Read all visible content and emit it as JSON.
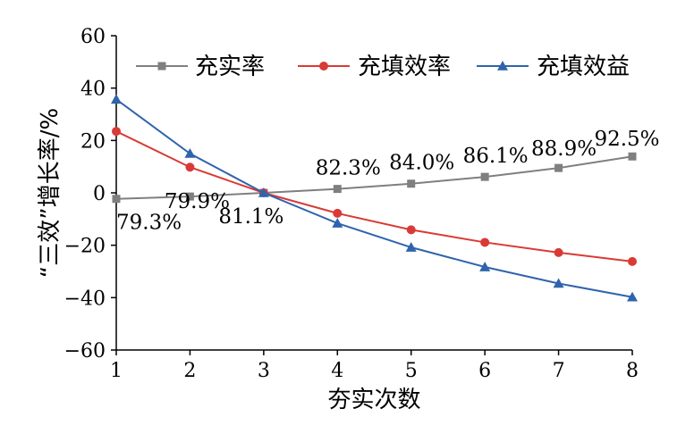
{
  "chart_data": {
    "type": "line",
    "x": [
      1,
      2,
      3,
      4,
      5,
      6,
      7,
      8
    ],
    "xlabel": "夯实次数",
    "ylabel": "“三效”增长率/%",
    "xlim": [
      1,
      8
    ],
    "ylim": [
      -60,
      60
    ],
    "x_ticks": [
      "1",
      "2",
      "3",
      "4",
      "5",
      "6",
      "7",
      "8"
    ],
    "y_ticks": [
      "60",
      "40",
      "20",
      "0",
      "−20",
      "−40",
      "−60"
    ],
    "y_tick_values": [
      60,
      40,
      20,
      0,
      -20,
      -40,
      -60
    ],
    "grid": false,
    "legend_position": "top",
    "series": [
      {
        "name": "充实率",
        "color": "#7f7f7f",
        "marker": "square",
        "values": [
          -2.3,
          -1.4,
          0,
          1.5,
          3.5,
          6.1,
          9.5,
          13.9
        ]
      },
      {
        "name": "充填效率",
        "color": "#d93a35",
        "marker": "circle",
        "values": [
          23.5,
          9.8,
          0,
          -7.8,
          -14.1,
          -18.9,
          -22.8,
          -26.2
        ]
      },
      {
        "name": "充填效益",
        "color": "#2f64ad",
        "marker": "triangle",
        "values": [
          35.7,
          15.0,
          0,
          -11.6,
          -20.8,
          -28.3,
          -34.6,
          -39.8
        ]
      }
    ],
    "annotations": [
      {
        "text": "79.3%",
        "x": 1,
        "y": -2.3
      },
      {
        "text": "79.9%",
        "x": 2,
        "y": -1.4
      },
      {
        "text": "81.1%",
        "x": 3,
        "y": 0
      },
      {
        "text": "82.3%",
        "x": 4,
        "y": 1.5
      },
      {
        "text": "84.0%",
        "x": 5,
        "y": 3.5
      },
      {
        "text": "86.1%",
        "x": 6,
        "y": 6.1
      },
      {
        "text": "88.9%",
        "x": 7,
        "y": 9.5
      },
      {
        "text": "92.5%",
        "x": 8,
        "y": 13.9
      }
    ]
  }
}
